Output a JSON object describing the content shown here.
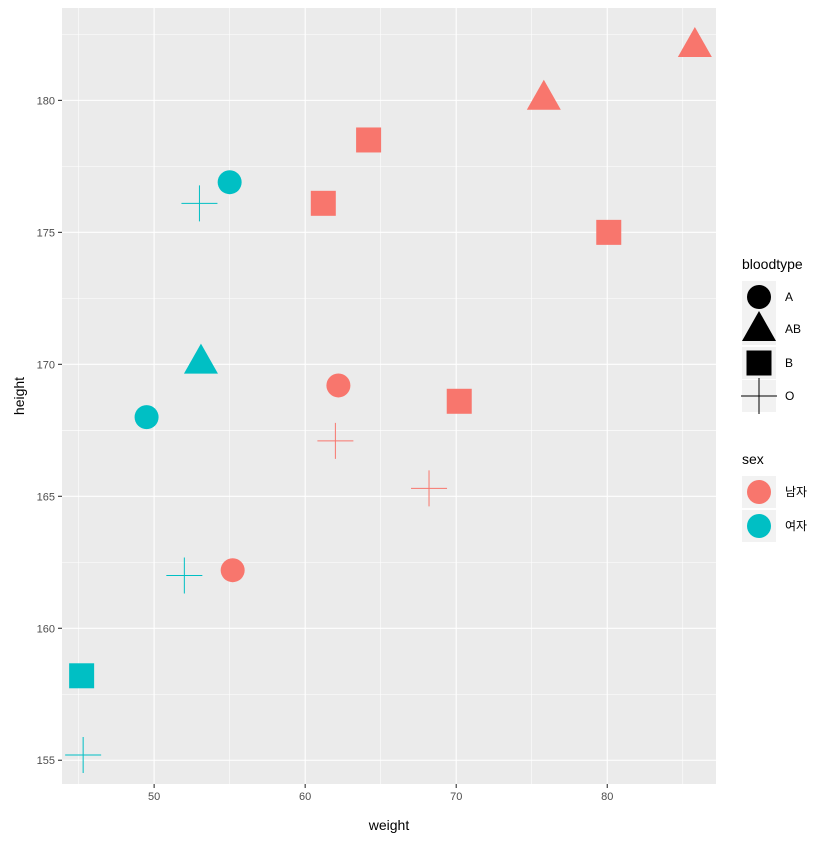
{
  "chart_data": {
    "type": "scatter",
    "xlabel": "weight",
    "ylabel": "height",
    "xlim": [
      43.9,
      87.2
    ],
    "ylim": [
      154.1,
      183.5
    ],
    "x_ticks": [
      50,
      60,
      70,
      80
    ],
    "y_ticks": [
      155,
      160,
      165,
      170,
      175,
      180
    ],
    "x_tick_labels": [
      "50",
      "60",
      "70",
      "80"
    ],
    "y_tick_labels": [
      "155",
      "160",
      "165",
      "170",
      "175",
      "180"
    ],
    "grid": true,
    "colors": {
      "남자": "#F8766D",
      "여자": "#00BFC4"
    },
    "shape_legend": {
      "title": "bloodtype",
      "entries": [
        {
          "label": "A",
          "shape": "circle"
        },
        {
          "label": "AB",
          "shape": "triangle"
        },
        {
          "label": "B",
          "shape": "square"
        },
        {
          "label": "O",
          "shape": "plus"
        }
      ]
    },
    "color_legend": {
      "title": "sex",
      "entries": [
        {
          "label": "남자",
          "color": "#F8766D"
        },
        {
          "label": "여자",
          "color": "#00BFC4"
        }
      ]
    },
    "points": [
      {
        "weight": 85.8,
        "height": 182.1,
        "bloodtype": "AB",
        "sex": "남자"
      },
      {
        "weight": 75.8,
        "height": 180.1,
        "bloodtype": "AB",
        "sex": "남자"
      },
      {
        "weight": 64.2,
        "height": 178.5,
        "bloodtype": "B",
        "sex": "남자"
      },
      {
        "weight": 61.2,
        "height": 176.1,
        "bloodtype": "B",
        "sex": "남자"
      },
      {
        "weight": 80.1,
        "height": 175.0,
        "bloodtype": "B",
        "sex": "남자"
      },
      {
        "weight": 62.2,
        "height": 169.2,
        "bloodtype": "A",
        "sex": "남자"
      },
      {
        "weight": 70.2,
        "height": 168.6,
        "bloodtype": "B",
        "sex": "남자"
      },
      {
        "weight": 62.0,
        "height": 167.1,
        "bloodtype": "O",
        "sex": "남자"
      },
      {
        "weight": 68.2,
        "height": 165.3,
        "bloodtype": "O",
        "sex": "남자"
      },
      {
        "weight": 55.2,
        "height": 162.2,
        "bloodtype": "A",
        "sex": "남자"
      },
      {
        "weight": 55.0,
        "height": 176.9,
        "bloodtype": "A",
        "sex": "여자"
      },
      {
        "weight": 53.0,
        "height": 176.1,
        "bloodtype": "O",
        "sex": "여자"
      },
      {
        "weight": 53.1,
        "height": 170.1,
        "bloodtype": "AB",
        "sex": "여자"
      },
      {
        "weight": 49.5,
        "height": 168.0,
        "bloodtype": "A",
        "sex": "여자"
      },
      {
        "weight": 52.0,
        "height": 162.0,
        "bloodtype": "O",
        "sex": "여자"
      },
      {
        "weight": 45.2,
        "height": 158.2,
        "bloodtype": "B",
        "sex": "여자"
      },
      {
        "weight": 45.3,
        "height": 155.2,
        "bloodtype": "O",
        "sex": "여자"
      }
    ]
  }
}
